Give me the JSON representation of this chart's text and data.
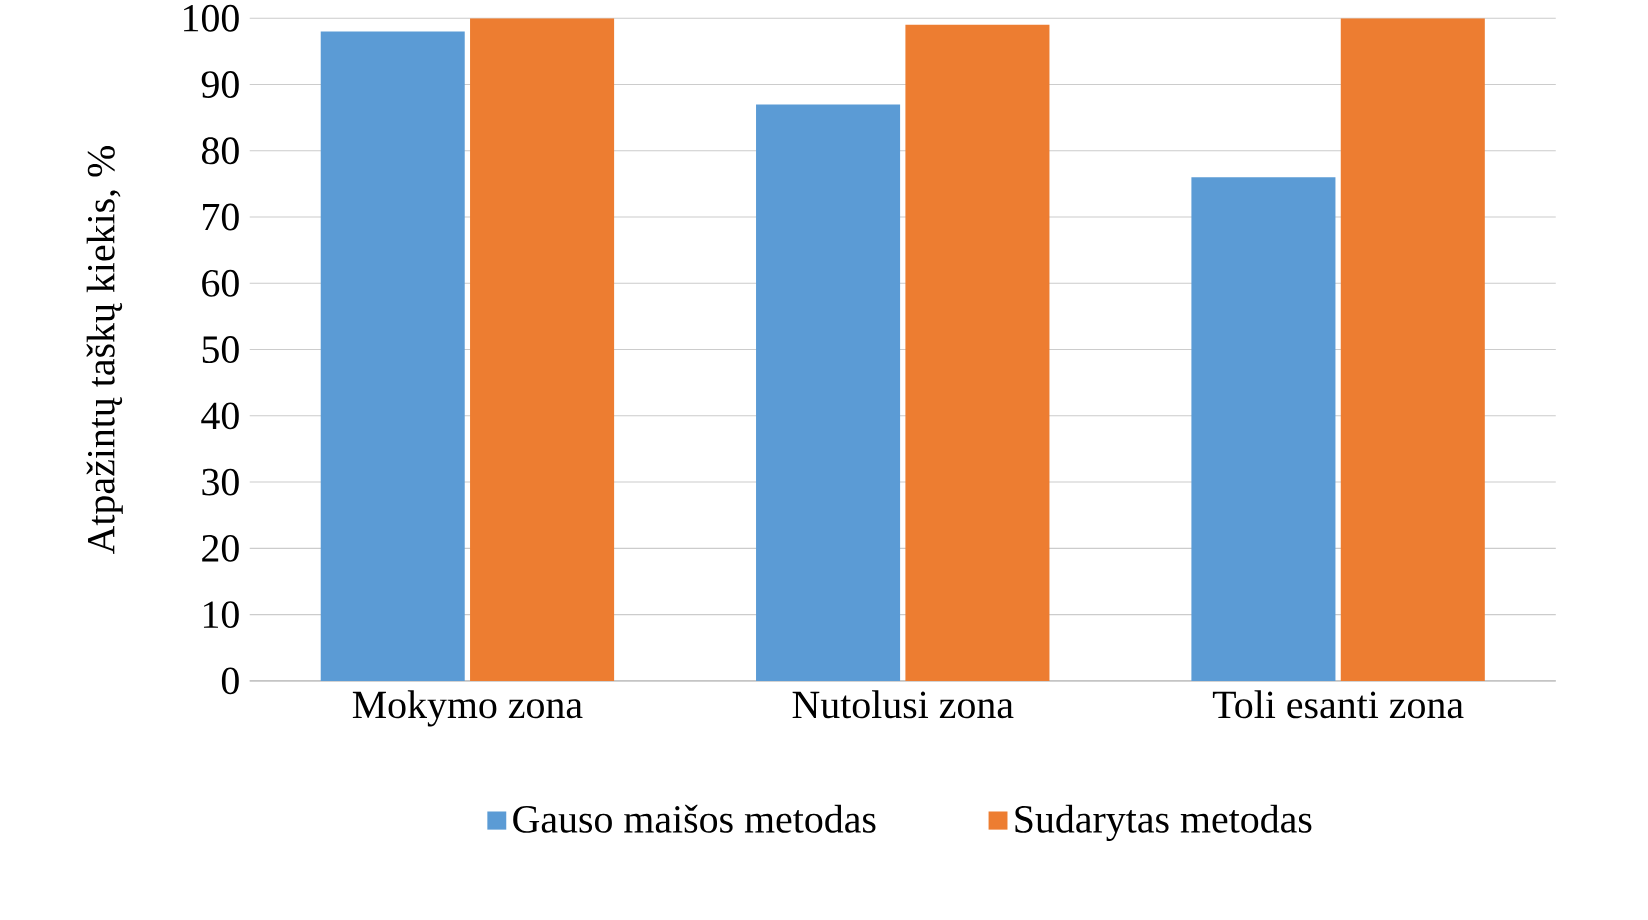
{
  "chart_data": {
    "type": "bar",
    "ylabel": "Atpažintų taškų kiekis, %",
    "categories": [
      "Mokymo zona",
      "Nutolusi zona",
      "Toli esanti zona"
    ],
    "series": [
      {
        "name": "Gauso maišos metodas",
        "color": "#5b9bd5",
        "values": [
          98,
          87,
          76
        ]
      },
      {
        "name": "Sudarytas metodas",
        "color": "#ed7d31",
        "values": [
          100,
          99,
          100
        ]
      }
    ],
    "ylim": [
      0,
      100
    ],
    "yticks": [
      0,
      10,
      20,
      30,
      40,
      50,
      60,
      70,
      80,
      90,
      100
    ],
    "grid": "y",
    "legend": "bottom"
  }
}
